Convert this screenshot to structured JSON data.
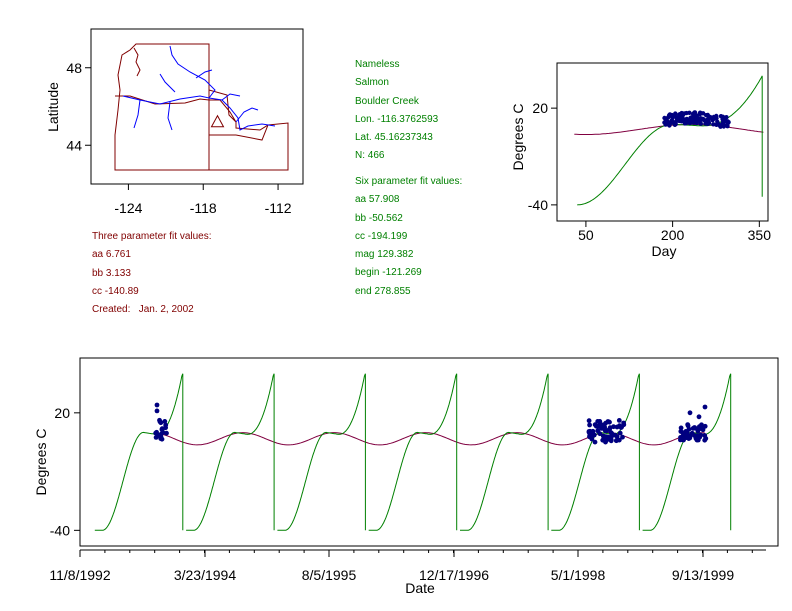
{
  "colors": {
    "model": "#008000",
    "fit": "#800040",
    "obs": "#000080",
    "map": "#800000",
    "river": "#0000ff",
    "station_info": "#008000",
    "three_param": "#800000"
  },
  "station": {
    "lines": [
      "Nameless",
      "Salmon",
      "Boulder Creek",
      "Lon. -116.3762593",
      "Lat. 45.16237343",
      "N: 466"
    ]
  },
  "six_param": {
    "lines": [
      "Six parameter fit values:",
      "aa 57.908",
      "bb -50.562",
      "cc -194.199",
      "mag 129.382",
      "begin -121.269",
      "end 278.855"
    ]
  },
  "three_param": {
    "lines": [
      "Three parameter fit values:",
      "aa 6.761",
      "bb 3.133",
      "cc -140.89",
      "Created:   Jan. 2, 2002"
    ]
  },
  "chart_data": [
    {
      "type": "map",
      "title": "",
      "xlabel": "",
      "ylabel": "Latitude",
      "xlim": [
        -127,
        -110
      ],
      "ylim": [
        42,
        50
      ],
      "xticks": [
        -124,
        -118,
        -112
      ],
      "xtick_labels": [
        "-124",
        "-118",
        "-112"
      ],
      "yticks": [
        44,
        48
      ],
      "ytick_labels": [
        "44",
        "48"
      ],
      "marker": {
        "label": "site",
        "lon": -116.3762593,
        "lat": 45.16237343,
        "shape": "triangle"
      }
    },
    {
      "type": "scatter",
      "title": "",
      "xlabel": "Day",
      "ylabel": "Degrees C",
      "xlim": [
        0,
        365
      ],
      "ylim": [
        -50,
        48
      ],
      "xticks": [
        50,
        200,
        350
      ],
      "xtick_labels": [
        "50",
        "200",
        "350"
      ],
      "yticks": [
        -40,
        20
      ],
      "ytick_labels": [
        "-40",
        "20"
      ],
      "series": [
        {
          "name": "six-parameter fit",
          "type": "line",
          "color": "#008000",
          "x_range": [
            30,
            357
          ],
          "peak_y": 40,
          "min_y": -40
        },
        {
          "name": "three-parameter fit",
          "type": "line",
          "color": "#800040",
          "aa": 6.761,
          "bb": 3.133,
          "cc": -140.89
        },
        {
          "name": "observed",
          "type": "scatter",
          "color": "#000080",
          "x_range": [
            185,
            300
          ],
          "y_range": [
            6,
            20
          ],
          "n": 466
        }
      ]
    },
    {
      "type": "line",
      "title": "",
      "xlabel": "Date",
      "ylabel": "Degrees C",
      "xlim": [
        "10/1/1992",
        "2/15/2000"
      ],
      "ylim": [
        -48,
        48
      ],
      "xtick_labels": [
        "11/8/1992",
        "3/23/1994",
        "8/5/1995",
        "12/17/1996",
        "5/1/1998",
        "9/13/1999"
      ],
      "yticks": [
        -40,
        20
      ],
      "ytick_labels": [
        "-40",
        "20"
      ],
      "series": [
        {
          "name": "six-parameter fit",
          "color": "#008000",
          "years": [
            1993,
            1994,
            1995,
            1996,
            1997,
            1998,
            1999
          ]
        },
        {
          "name": "three-parameter fit",
          "color": "#800040"
        },
        {
          "name": "observed",
          "color": "#000080",
          "periods": [
            "summer 1993",
            "summer 1998",
            "summer 1999"
          ]
        }
      ]
    }
  ]
}
